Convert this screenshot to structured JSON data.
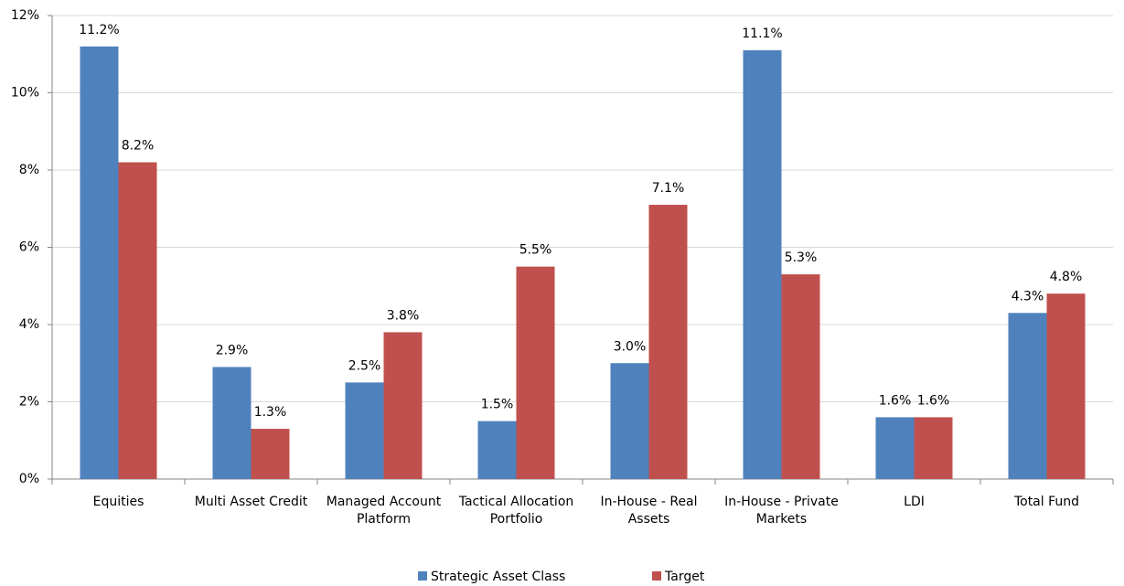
{
  "chart_data": {
    "type": "bar",
    "categories": [
      "Equities",
      "Multi Asset Credit",
      "Managed Account Platform",
      "Tactical Allocation Portfolio",
      "In-House - Real Assets",
      "In-House - Private Markets",
      "LDI",
      "Total Fund"
    ],
    "series": [
      {
        "name": "Strategic Asset Class",
        "color": "#4f81bd",
        "values": [
          11.2,
          2.9,
          2.5,
          1.5,
          3.0,
          11.1,
          1.6,
          4.3
        ],
        "value_labels": [
          "11.2%",
          "2.9%",
          "2.5%",
          "1.5%",
          "3.0%",
          "11.1%",
          "1.6%",
          "4.3%"
        ]
      },
      {
        "name": "Target",
        "color": "#c0504d",
        "values": [
          8.2,
          1.3,
          3.8,
          5.5,
          7.1,
          5.3,
          1.6,
          4.8
        ],
        "value_labels": [
          "8.2%",
          "1.3%",
          "3.8%",
          "5.5%",
          "7.1%",
          "5.3%",
          "1.6%",
          "4.8%"
        ]
      }
    ],
    "ylim": [
      0,
      12
    ],
    "yticks": [
      {
        "value": 0,
        "label": "0%"
      },
      {
        "value": 2,
        "label": "2%"
      },
      {
        "value": 4,
        "label": "4%"
      },
      {
        "value": 6,
        "label": "6%"
      },
      {
        "value": 8,
        "label": "8%"
      },
      {
        "value": 10,
        "label": "10%"
      },
      {
        "value": 12,
        "label": "12%"
      }
    ],
    "grid": true,
    "legend": "bottom"
  }
}
